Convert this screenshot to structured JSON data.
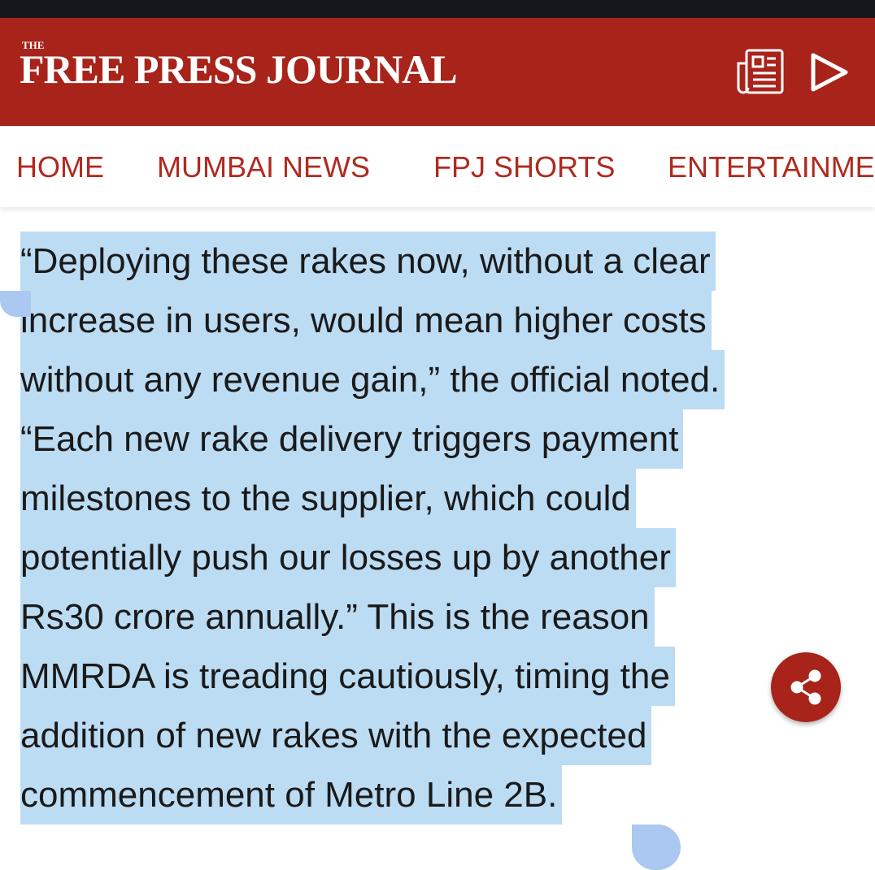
{
  "header": {
    "logo_small": "THE",
    "logo": "FREE PRESS JOURNAL"
  },
  "nav": {
    "items": [
      "HOME",
      "MUMBAI NEWS",
      "FPJ SHORTS",
      "ENTERTAINME"
    ]
  },
  "article": {
    "lines": [
      "“Deploying these rakes now, without a clear",
      "increase in users, would mean higher costs",
      "without any revenue gain,” the official noted.",
      "“Each new rake delivery triggers payment",
      "milestones to the supplier, which could",
      "potentially push our losses up by another",
      "Rs30 crore annually.” This is the reason",
      "MMRDA is treading cautiously, timing the",
      "addition of new rakes with the expected",
      "commencement of Metro Line 2B."
    ]
  }
}
